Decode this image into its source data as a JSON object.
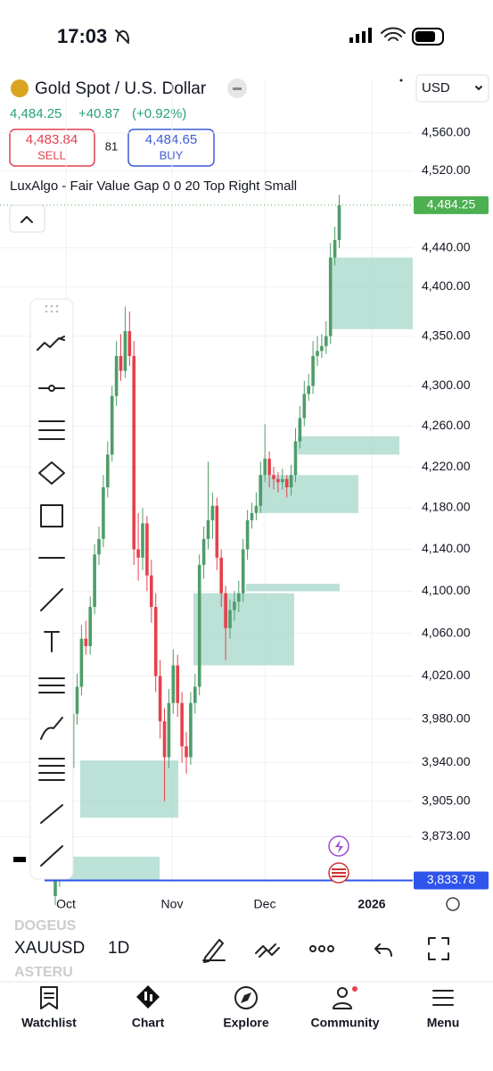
{
  "status": {
    "time": "17:03"
  },
  "header": {
    "title": "Gold Spot / U.S. Dollar",
    "currency": "USD"
  },
  "quote": {
    "last": "4,484.25",
    "change": "+40.87",
    "change_pct": "(+0.92%)"
  },
  "order": {
    "sell_price": "4,483.84",
    "sell_label": "SELL",
    "spread": "81",
    "buy_price": "4,484.65",
    "buy_label": "BUY"
  },
  "indicator": {
    "label": "LuxAlgo - Fair Value Gap 0 0 20 Top Right Small"
  },
  "chart": {
    "type": "candlestick",
    "log_scale": true,
    "grid": true,
    "up_color": "#4f9d69",
    "down_color": "#e5414c",
    "fvg_color": "#9fd4c6",
    "ylim": [
      3831,
      4616
    ],
    "yticks": [
      {
        "value": 4560,
        "label": "4,560.00"
      },
      {
        "value": 4520,
        "label": "4,520.00"
      },
      {
        "value": 4440,
        "label": "4,440.00"
      },
      {
        "value": 4400,
        "label": "4,400.00"
      },
      {
        "value": 4350,
        "label": "4,350.00"
      },
      {
        "value": 4300,
        "label": "4,300.00"
      },
      {
        "value": 4260,
        "label": "4,260.00"
      },
      {
        "value": 4220,
        "label": "4,220.00"
      },
      {
        "value": 4180,
        "label": "4,180.00"
      },
      {
        "value": 4140,
        "label": "4,140.00"
      },
      {
        "value": 4100,
        "label": "4,100.00"
      },
      {
        "value": 4060,
        "label": "4,060.00"
      },
      {
        "value": 4020,
        "label": "4,020.00"
      },
      {
        "value": 3980,
        "label": "3,980.00"
      },
      {
        "value": 3940,
        "label": "3,940.00"
      },
      {
        "value": 3905,
        "label": "3,905.00"
      },
      {
        "value": 3873,
        "label": "3,873.00"
      }
    ],
    "x_labels": [
      "Oct",
      "Nov",
      "Dec",
      "2026"
    ],
    "last_price": {
      "value": 4484.25,
      "label": "4,484.25"
    },
    "line_price": {
      "value": 3833.78,
      "label": "3,833.78"
    },
    "fvg": [
      {
        "top": 4430,
        "bottom": 4357
      },
      {
        "top": 4250,
        "bottom": 4232
      },
      {
        "top": 4212,
        "bottom": 4175
      },
      {
        "top": 4107,
        "bottom": 4100
      },
      {
        "top": 4098,
        "bottom": 4030
      },
      {
        "top": 3942,
        "bottom": 3890
      },
      {
        "top": 3855,
        "bottom": 3834
      }
    ],
    "ohlc": [
      [
        3820,
        3842,
        3812,
        3834
      ],
      [
        3834,
        3862,
        3828,
        3855
      ],
      [
        3855,
        3898,
        3848,
        3890
      ],
      [
        3890,
        3945,
        3882,
        3935
      ],
      [
        3935,
        3995,
        3928,
        3985
      ],
      [
        3985,
        4022,
        3975,
        4010
      ],
      [
        4010,
        4068,
        4002,
        4055
      ],
      [
        4055,
        4072,
        4040,
        4048
      ],
      [
        4048,
        4095,
        4040,
        4085
      ],
      [
        4085,
        4145,
        4078,
        4135
      ],
      [
        4135,
        4162,
        4125,
        4150
      ],
      [
        4150,
        4212,
        4142,
        4200
      ],
      [
        4200,
        4245,
        4190,
        4232
      ],
      [
        4232,
        4300,
        4225,
        4290
      ],
      [
        4290,
        4345,
        4280,
        4330
      ],
      [
        4330,
        4352,
        4305,
        4315
      ],
      [
        4315,
        4380,
        4308,
        4355
      ],
      [
        4355,
        4375,
        4320,
        4330
      ],
      [
        4330,
        4345,
        4125,
        4140
      ],
      [
        4140,
        4175,
        4110,
        4132
      ],
      [
        4132,
        4180,
        4120,
        4165
      ],
      [
        4165,
        4172,
        4100,
        4115
      ],
      [
        4115,
        4130,
        4070,
        4085
      ],
      [
        4085,
        4098,
        4005,
        4020
      ],
      [
        4020,
        4035,
        3962,
        3978
      ],
      [
        3978,
        3990,
        3905,
        3945
      ],
      [
        3945,
        4008,
        3935,
        3995
      ],
      [
        3995,
        4045,
        3985,
        4030
      ],
      [
        4030,
        4040,
        3982,
        3995
      ],
      [
        3995,
        4005,
        3940,
        3955
      ],
      [
        3955,
        3968,
        3930,
        3945
      ],
      [
        3945,
        4005,
        3938,
        3995
      ],
      [
        3995,
        4022,
        3985,
        4010
      ],
      [
        4010,
        4135,
        4002,
        4125
      ],
      [
        4125,
        4162,
        4112,
        4150
      ],
      [
        4150,
        4225,
        4140,
        4168
      ],
      [
        4168,
        4195,
        4150,
        4182
      ],
      [
        4182,
        4190,
        4120,
        4132
      ],
      [
        4132,
        4140,
        4085,
        4098
      ],
      [
        4098,
        4105,
        4035,
        4065
      ],
      [
        4065,
        4092,
        4055,
        4082
      ],
      [
        4082,
        4100,
        4072,
        4090
      ],
      [
        4090,
        4110,
        4080,
        4098
      ],
      [
        4098,
        4150,
        4090,
        4140
      ],
      [
        4140,
        4178,
        4130,
        4168
      ],
      [
        4168,
        4185,
        4160,
        4175
      ],
      [
        4175,
        4195,
        4168,
        4182
      ],
      [
        4182,
        4225,
        4175,
        4212
      ],
      [
        4212,
        4262,
        4205,
        4228
      ],
      [
        4228,
        4235,
        4200,
        4212
      ],
      [
        4212,
        4220,
        4198,
        4208
      ],
      [
        4208,
        4215,
        4195,
        4205
      ],
      [
        4205,
        4218,
        4198,
        4208
      ],
      [
        4208,
        4212,
        4190,
        4200
      ],
      [
        4200,
        4222,
        4192,
        4212
      ],
      [
        4212,
        4258,
        4205,
        4245
      ],
      [
        4245,
        4280,
        4238,
        4268
      ],
      [
        4268,
        4305,
        4260,
        4292
      ],
      [
        4292,
        4312,
        4285,
        4300
      ],
      [
        4300,
        4345,
        4292,
        4330
      ],
      [
        4330,
        4350,
        4320,
        4335
      ],
      [
        4335,
        4352,
        4328,
        4340
      ],
      [
        4340,
        4365,
        4332,
        4350
      ],
      [
        4350,
        4445,
        4342,
        4430
      ],
      [
        4430,
        4462,
        4422,
        4448
      ],
      [
        4448,
        4495,
        4440,
        4484.25
      ]
    ]
  },
  "toolbar": {
    "prev_symbol": "DOGEUS",
    "symbol": "XAUUSD",
    "interval": "1D",
    "next_symbol": "ASTERU"
  },
  "nav": {
    "items": [
      "Watchlist",
      "Chart",
      "Explore",
      "Community",
      "Menu"
    ]
  }
}
